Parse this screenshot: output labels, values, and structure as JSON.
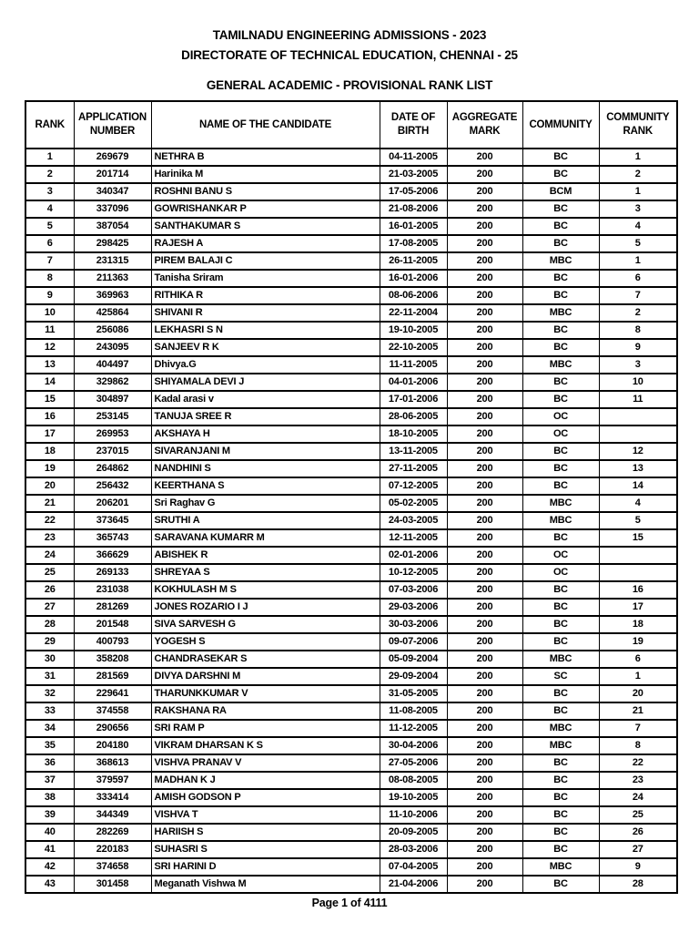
{
  "page": {
    "title_line1": "TAMILNADU ENGINEERING ADMISSIONS - 2023",
    "title_line2": "DIRECTORATE OF TECHNICAL EDUCATION, CHENNAI - 25",
    "subtitle": "GENERAL ACADEMIC - PROVISIONAL RANK LIST",
    "footer": "Page 1 of 4111"
  },
  "colors": {
    "text": "#000000",
    "border": "#000000",
    "background": "#ffffff"
  },
  "table": {
    "headers": [
      "RANK",
      "APPLICATION NUMBER",
      "NAME OF THE CANDIDATE",
      "DATE OF BIRTH",
      "AGGREGATE MARK",
      "COMMUNITY",
      "COMMUNITY RANK"
    ],
    "rows": [
      [
        "1",
        "269679",
        "NETHRA B",
        "04-11-2005",
        "200",
        "BC",
        "1"
      ],
      [
        "2",
        "201714",
        "Harinika M",
        "21-03-2005",
        "200",
        "BC",
        "2"
      ],
      [
        "3",
        "340347",
        "ROSHNI BANU S",
        "17-05-2006",
        "200",
        "BCM",
        "1"
      ],
      [
        "4",
        "337096",
        "GOWRISHANKAR P",
        "21-08-2006",
        "200",
        "BC",
        "3"
      ],
      [
        "5",
        "387054",
        "SANTHAKUMAR S",
        "16-01-2005",
        "200",
        "BC",
        "4"
      ],
      [
        "6",
        "298425",
        "RAJESH A",
        "17-08-2005",
        "200",
        "BC",
        "5"
      ],
      [
        "7",
        "231315",
        "PIREM BALAJI C",
        "26-11-2005",
        "200",
        "MBC",
        "1"
      ],
      [
        "8",
        "211363",
        "Tanisha Sriram",
        "16-01-2006",
        "200",
        "BC",
        "6"
      ],
      [
        "9",
        "369963",
        "RITHIKA R",
        "08-06-2006",
        "200",
        "BC",
        "7"
      ],
      [
        "10",
        "425864",
        "SHIVANI R",
        "22-11-2004",
        "200",
        "MBC",
        "2"
      ],
      [
        "11",
        "256086",
        "LEKHASRI S N",
        "19-10-2005",
        "200",
        "BC",
        "8"
      ],
      [
        "12",
        "243095",
        "SANJEEV R K",
        "22-10-2005",
        "200",
        "BC",
        "9"
      ],
      [
        "13",
        "404497",
        "Dhivya.G",
        "11-11-2005",
        "200",
        "MBC",
        "3"
      ],
      [
        "14",
        "329862",
        "SHIYAMALA DEVI J",
        "04-01-2006",
        "200",
        "BC",
        "10"
      ],
      [
        "15",
        "304897",
        "Kadal arasi v",
        "17-01-2006",
        "200",
        "BC",
        "11"
      ],
      [
        "16",
        "253145",
        "TANUJA SREE R",
        "28-06-2005",
        "200",
        "OC",
        ""
      ],
      [
        "17",
        "269953",
        "AKSHAYA H",
        "18-10-2005",
        "200",
        "OC",
        ""
      ],
      [
        "18",
        "237015",
        "SIVARANJANI M",
        "13-11-2005",
        "200",
        "BC",
        "12"
      ],
      [
        "19",
        "264862",
        "NANDHINI S",
        "27-11-2005",
        "200",
        "BC",
        "13"
      ],
      [
        "20",
        "256432",
        "KEERTHANA S",
        "07-12-2005",
        "200",
        "BC",
        "14"
      ],
      [
        "21",
        "206201",
        "Sri Raghav G",
        "05-02-2005",
        "200",
        "MBC",
        "4"
      ],
      [
        "22",
        "373645",
        "SRUTHI A",
        "24-03-2005",
        "200",
        "MBC",
        "5"
      ],
      [
        "23",
        "365743",
        "SARAVANA KUMARR M",
        "12-11-2005",
        "200",
        "BC",
        "15"
      ],
      [
        "24",
        "366629",
        "ABISHEK R",
        "02-01-2006",
        "200",
        "OC",
        ""
      ],
      [
        "25",
        "269133",
        "SHREYAA S",
        "10-12-2005",
        "200",
        "OC",
        ""
      ],
      [
        "26",
        "231038",
        "KOKHULASH M S",
        "07-03-2006",
        "200",
        "BC",
        "16"
      ],
      [
        "27",
        "281269",
        "JONES ROZARIO I J",
        "29-03-2006",
        "200",
        "BC",
        "17"
      ],
      [
        "28",
        "201548",
        "SIVA SARVESH G",
        "30-03-2006",
        "200",
        "BC",
        "18"
      ],
      [
        "29",
        "400793",
        "YOGESH S",
        "09-07-2006",
        "200",
        "BC",
        "19"
      ],
      [
        "30",
        "358208",
        "CHANDRASEKAR S",
        "05-09-2004",
        "200",
        "MBC",
        "6"
      ],
      [
        "31",
        "281569",
        "DIVYA DARSHNI M",
        "29-09-2004",
        "200",
        "SC",
        "1"
      ],
      [
        "32",
        "229641",
        "THARUNKKUMAR V",
        "31-05-2005",
        "200",
        "BC",
        "20"
      ],
      [
        "33",
        "374558",
        "RAKSHANA RA",
        "11-08-2005",
        "200",
        "BC",
        "21"
      ],
      [
        "34",
        "290656",
        "SRI RAM P",
        "11-12-2005",
        "200",
        "MBC",
        "7"
      ],
      [
        "35",
        "204180",
        "VIKRAM DHARSAN K S",
        "30-04-2006",
        "200",
        "MBC",
        "8"
      ],
      [
        "36",
        "368613",
        "VISHVA PRANAV V",
        "27-05-2006",
        "200",
        "BC",
        "22"
      ],
      [
        "37",
        "379597",
        "MADHAN K J",
        "08-08-2005",
        "200",
        "BC",
        "23"
      ],
      [
        "38",
        "333414",
        "AMISH GODSON P",
        "19-10-2005",
        "200",
        "BC",
        "24"
      ],
      [
        "39",
        "344349",
        "VISHVA T",
        "11-10-2006",
        "200",
        "BC",
        "25"
      ],
      [
        "40",
        "282269",
        "HARIISH S",
        "20-09-2005",
        "200",
        "BC",
        "26"
      ],
      [
        "41",
        "220183",
        "SUHASRI S",
        "28-03-2006",
        "200",
        "BC",
        "27"
      ],
      [
        "42",
        "374658",
        "SRI HARINI D",
        "07-04-2005",
        "200",
        "MBC",
        "9"
      ],
      [
        "43",
        "301458",
        "Meganath Vishwa M",
        "21-04-2006",
        "200",
        "BC",
        "28"
      ]
    ]
  }
}
